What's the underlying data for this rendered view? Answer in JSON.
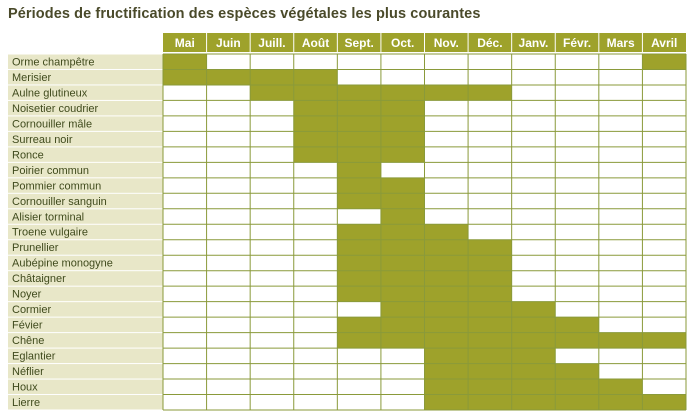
{
  "title": "Périodes de fructification des espèces végétales les plus courantes",
  "colors": {
    "fill": "#9ea22b",
    "label_bg": "#e8e7c8",
    "header_text": "#ffffff",
    "row_text": "#3f4a1c",
    "grid_line": "#8a9a3a"
  },
  "chart_data": {
    "type": "table",
    "title": "Périodes de fructification des espèces végétales les plus courantes",
    "months": [
      "Mai",
      "Juin",
      "Juill.",
      "Août",
      "Sept.",
      "Oct.",
      "Nov.",
      "Déc.",
      "Janv.",
      "Févr.",
      "Mars",
      "Avril"
    ],
    "species": [
      {
        "name": "Orme champêtre",
        "months": [
          "Mai",
          "Avril"
        ]
      },
      {
        "name": "Merisier",
        "months": [
          "Mai",
          "Juin",
          "Juill.",
          "Août"
        ]
      },
      {
        "name": "Aulne glutineux",
        "months": [
          "Juill.",
          "Août",
          "Sept.",
          "Oct.",
          "Nov.",
          "Déc."
        ]
      },
      {
        "name": "Noisetier coudrier",
        "months": [
          "Août",
          "Sept.",
          "Oct."
        ]
      },
      {
        "name": "Cornouiller mâle",
        "months": [
          "Août",
          "Sept.",
          "Oct."
        ]
      },
      {
        "name": "Surreau noir",
        "months": [
          "Août",
          "Sept.",
          "Oct."
        ]
      },
      {
        "name": "Ronce",
        "months": [
          "Août",
          "Sept.",
          "Oct."
        ]
      },
      {
        "name": "Poirier commun",
        "months": [
          "Sept."
        ]
      },
      {
        "name": "Pommier commun",
        "months": [
          "Sept.",
          "Oct."
        ]
      },
      {
        "name": "Cornouiller sanguin",
        "months": [
          "Sept.",
          "Oct."
        ]
      },
      {
        "name": "Alisier torminal",
        "months": [
          "Oct."
        ]
      },
      {
        "name": "Troene vulgaire",
        "months": [
          "Sept.",
          "Oct.",
          "Nov."
        ]
      },
      {
        "name": "Prunellier",
        "months": [
          "Sept.",
          "Oct.",
          "Nov.",
          "Déc."
        ]
      },
      {
        "name": "Aubépine monogyne",
        "months": [
          "Sept.",
          "Oct.",
          "Nov.",
          "Déc."
        ]
      },
      {
        "name": "Châtaigner",
        "months": [
          "Sept.",
          "Oct.",
          "Nov.",
          "Déc."
        ]
      },
      {
        "name": "Noyer",
        "months": [
          "Sept.",
          "Oct.",
          "Nov.",
          "Déc."
        ]
      },
      {
        "name": "Cormier",
        "months": [
          "Oct.",
          "Nov.",
          "Déc.",
          "Janv."
        ]
      },
      {
        "name": "Févier",
        "months": [
          "Sept.",
          "Oct.",
          "Nov.",
          "Déc.",
          "Janv.",
          "Févr."
        ]
      },
      {
        "name": "Chêne",
        "months": [
          "Sept.",
          "Oct.",
          "Nov.",
          "Déc.",
          "Janv.",
          "Févr.",
          "Mars",
          "Avril"
        ]
      },
      {
        "name": "Eglantier",
        "months": [
          "Nov.",
          "Déc.",
          "Janv."
        ]
      },
      {
        "name": "Néflier",
        "months": [
          "Nov.",
          "Déc.",
          "Janv.",
          "Févr."
        ]
      },
      {
        "name": "Houx",
        "months": [
          "Nov.",
          "Déc.",
          "Janv.",
          "Févr.",
          "Mars"
        ]
      },
      {
        "name": "Lierre",
        "months": [
          "Nov.",
          "Déc.",
          "Janv.",
          "Févr.",
          "Mars",
          "Avril"
        ]
      }
    ]
  }
}
